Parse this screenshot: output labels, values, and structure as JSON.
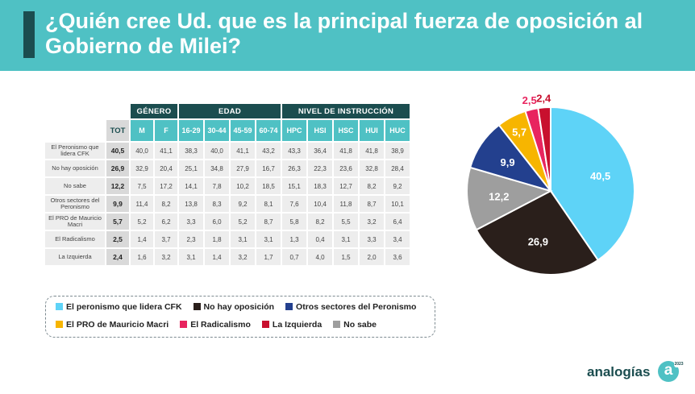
{
  "title": "¿Quién cree Ud. que es la principal fuerza de oposición al Gobierno de Milei?",
  "table": {
    "groups": [
      {
        "label": "GÉNERO",
        "span": 2
      },
      {
        "label": "EDAD",
        "span": 4
      },
      {
        "label": "NIVEL DE INSTRUCCIÓN",
        "span": 5
      }
    ],
    "tot_header": "TOT",
    "columns": [
      "M",
      "F",
      "16-29",
      "30-44",
      "45-59",
      "60-74",
      "HPC",
      "HSI",
      "HSC",
      "HUI",
      "HUC"
    ],
    "rows": [
      {
        "label": "El Peronismo que lidera CFK",
        "tot": "40,5",
        "values": [
          "40,0",
          "41,1",
          "38,3",
          "40,0",
          "41,1",
          "43,2",
          "43,3",
          "36,4",
          "41,8",
          "41,8",
          "38,9"
        ]
      },
      {
        "label": "No hay oposición",
        "tot": "26,9",
        "values": [
          "32,9",
          "20,4",
          "25,1",
          "34,8",
          "27,9",
          "16,7",
          "26,3",
          "22,3",
          "23,6",
          "32,8",
          "28,4"
        ]
      },
      {
        "label": "No sabe",
        "tot": "12,2",
        "values": [
          "7,5",
          "17,2",
          "14,1",
          "7,8",
          "10,2",
          "18,5",
          "15,1",
          "18,3",
          "12,7",
          "8,2",
          "9,2"
        ]
      },
      {
        "label": "Otros sectores del Peronismo",
        "tot": "9,9",
        "values": [
          "11,4",
          "8,2",
          "13,8",
          "8,3",
          "9,2",
          "8,1",
          "7,6",
          "10,4",
          "11,8",
          "8,7",
          "10,1"
        ]
      },
      {
        "label": "El PRO de Mauricio Macri",
        "tot": "5,7",
        "values": [
          "5,2",
          "6,2",
          "3,3",
          "6,0",
          "5,2",
          "8,7",
          "5,8",
          "8,2",
          "5,5",
          "3,2",
          "6,4"
        ]
      },
      {
        "label": "El Radicalismo",
        "tot": "2,5",
        "values": [
          "1,4",
          "3,7",
          "2,3",
          "1,8",
          "3,1",
          "3,1",
          "1,3",
          "0,4",
          "3,1",
          "3,3",
          "3,4"
        ]
      },
      {
        "label": "La Izquierda",
        "tot": "2,4",
        "values": [
          "1,6",
          "3,2",
          "3,1",
          "1,4",
          "3,2",
          "1,7",
          "0,7",
          "4,0",
          "1,5",
          "2,0",
          "3,6"
        ]
      }
    ]
  },
  "chart_data": {
    "type": "pie",
    "slices": [
      {
        "label": "El peronismo que lidera CFK",
        "value": 40.5,
        "display": "40,5",
        "color": "#5ed3f7"
      },
      {
        "label": "No hay oposición",
        "value": 26.9,
        "display": "26,9",
        "color": "#2a1f1b"
      },
      {
        "label": "No sabe",
        "value": 12.2,
        "display": "12,2",
        "color": "#9e9e9e"
      },
      {
        "label": "Otros sectores del Peronismo",
        "value": 9.9,
        "display": "9,9",
        "color": "#23408e"
      },
      {
        "label": "El PRO de Mauricio Macri",
        "value": 5.7,
        "display": "5,7",
        "color": "#f7b500"
      },
      {
        "label": "El Radicalismo",
        "value": 2.5,
        "display": "2,5",
        "color": "#e8245f"
      },
      {
        "label": "La Izquierda",
        "value": 2.4,
        "display": "2,4",
        "color": "#c8102e"
      }
    ]
  },
  "legend": {
    "rows": [
      [
        {
          "label": "El peronismo que lidera CFK",
          "color": "#5ed3f7"
        },
        {
          "label": "No hay oposición",
          "color": "#2a1f1b"
        },
        {
          "label": "Otros sectores del Peronismo",
          "color": "#23408e"
        }
      ],
      [
        {
          "label": "El PRO de Mauricio Macri",
          "color": "#f7b500"
        },
        {
          "label": "El Radicalismo",
          "color": "#e8245f"
        },
        {
          "label": "La Izquierda",
          "color": "#c8102e"
        },
        {
          "label": "No sabe",
          "color": "#9e9e9e"
        }
      ]
    ]
  },
  "brand": {
    "name": "analogías",
    "mark": "a",
    "tag": "2023"
  }
}
